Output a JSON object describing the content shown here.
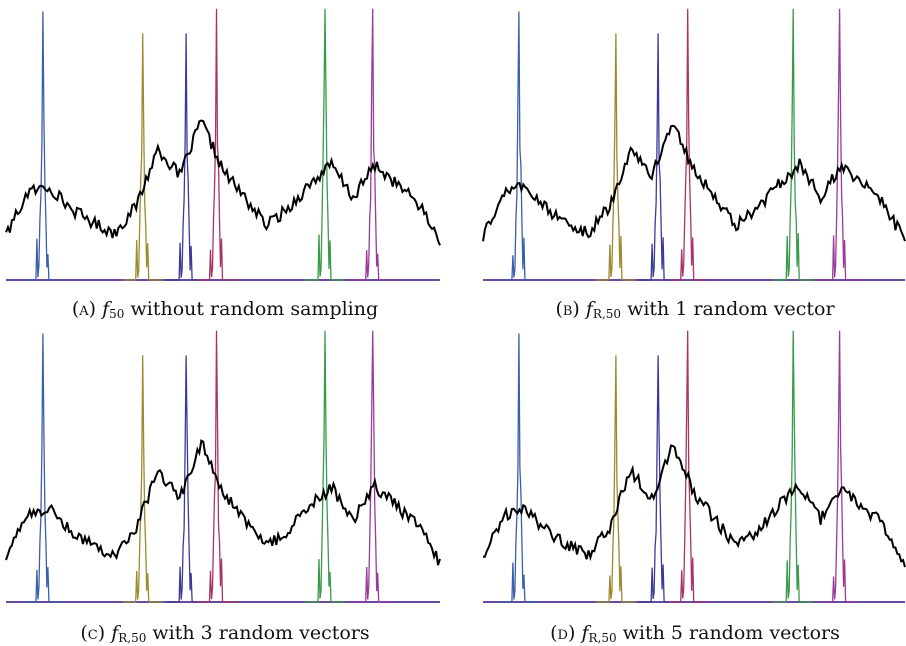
{
  "panels": [
    {
      "letter": "(a)",
      "fn": "f",
      "sub": "50",
      "rest": " without random sampling"
    },
    {
      "letter": "(b)",
      "fn": "f",
      "sub": "R,50",
      "rest": " with 1 random vector"
    },
    {
      "letter": "(c)",
      "fn": "f",
      "sub": "R,50",
      "rest": " with 3 random vectors"
    },
    {
      "letter": "(d)",
      "fn": "f",
      "sub": "R,50",
      "rest": " with 5 random vectors"
    }
  ],
  "colors": {
    "signal": "#000000",
    "blue": "#3b5fa8",
    "olive": "#9c8a2e",
    "indigo": "#3a3a9a",
    "crimson": "#a8336a",
    "green": "#3a9a4a",
    "magenta": "#9a3a9a",
    "baseline": "#6a4aa0"
  },
  "chart_data": {
    "type": "line",
    "x": [
      0,
      0.05,
      0.1,
      0.15,
      0.2,
      0.25,
      0.3,
      0.35,
      0.4,
      0.45,
      0.5,
      0.55,
      0.6,
      0.65,
      0.7,
      0.75,
      0.8,
      0.85,
      0.9,
      0.95,
      1.0
    ],
    "series": [
      {
        "values": [
          0.16,
          0.32,
          0.34,
          0.26,
          0.21,
          0.17,
          0.27,
          0.48,
          0.38,
          0.58,
          0.4,
          0.3,
          0.2,
          0.26,
          0.35,
          0.42,
          0.3,
          0.42,
          0.35,
          0.28,
          0.14
        ]
      }
    ],
    "peaks": [
      {
        "color": "blue",
        "center": 0.085,
        "height": 0.98
      },
      {
        "color": "olive",
        "center": 0.315,
        "height": 0.9
      },
      {
        "color": "indigo",
        "center": 0.415,
        "height": 0.9
      },
      {
        "color": "crimson",
        "center": 0.485,
        "height": 0.99
      },
      {
        "color": "green",
        "center": 0.735,
        "height": 0.99
      },
      {
        "color": "magenta",
        "center": 0.845,
        "height": 0.99
      }
    ],
    "grid": false
  }
}
